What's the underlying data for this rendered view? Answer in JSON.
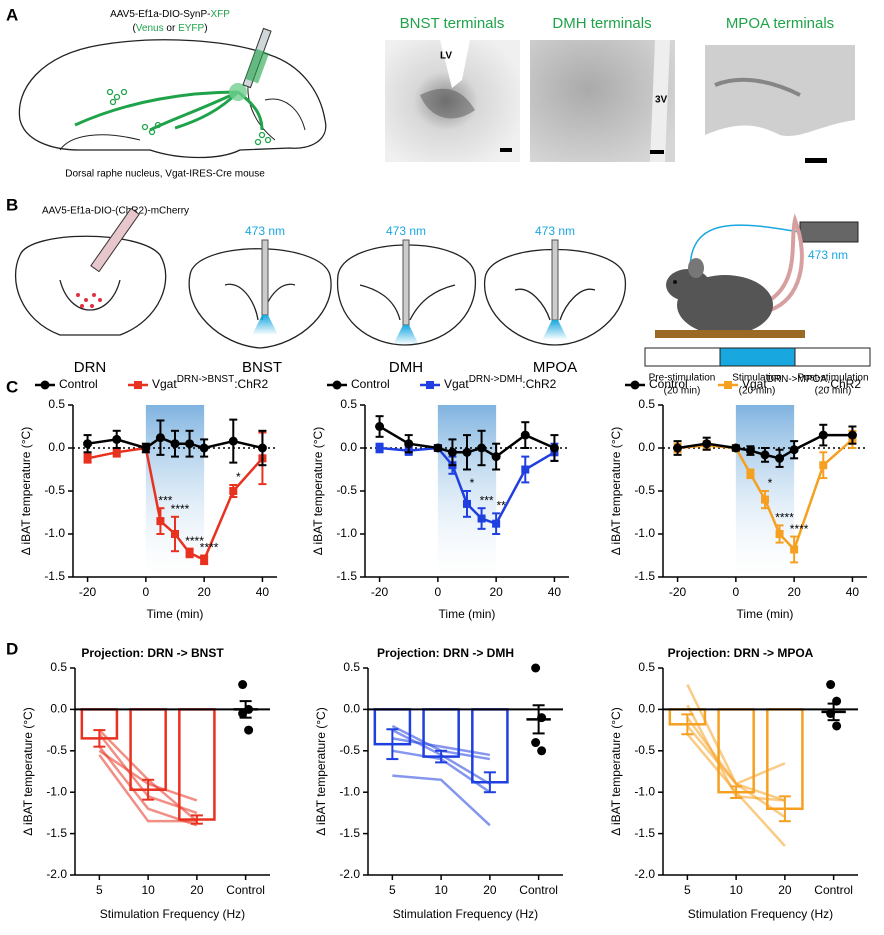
{
  "panel_a": {
    "label": "A",
    "vector": [
      "AAV5-Ef1a-DIO-SynP-",
      "XFP"
    ],
    "reporters": [
      "(",
      "Venus",
      " or ",
      "EYFP",
      ")"
    ],
    "caption": "Dorsal raphe nucleus, Vgat-IRES-Cre mouse",
    "images": [
      {
        "title": "BNST terminals",
        "mark": "LV"
      },
      {
        "title": "DMH terminals",
        "mark": "3V"
      },
      {
        "title": "MPOA terminals"
      }
    ]
  },
  "panel_b": {
    "label": "B",
    "vector": "AAV5-Ef1a-DIO-(ChR2)-mCherry",
    "sections": [
      {
        "label": "DRN"
      },
      {
        "label": "BNST",
        "laser": "473 nm"
      },
      {
        "label": "DMH",
        "laser": "473 nm"
      },
      {
        "label": "MPOA",
        "laser": "473 nm"
      }
    ],
    "setup_laser": "473 nm",
    "timeline": [
      {
        "phase": "Pre-stimulation",
        "duration": "(20 min)"
      },
      {
        "phase": "Stimulation",
        "duration": "(20 min)"
      },
      {
        "phase": "Post-stimulation",
        "duration": "(20 min)"
      }
    ]
  },
  "panel_c": {
    "label": "C"
  },
  "panel_d": {
    "label": "D"
  },
  "chart_data": [
    {
      "type": "line",
      "x": [
        -20,
        -10,
        0,
        5,
        10,
        15,
        20,
        30,
        40
      ],
      "xlim": [
        -25,
        45
      ],
      "xticks": [
        -20,
        0,
        20,
        40
      ],
      "ylim": [
        -1.5,
        0.5
      ],
      "yticks": [
        0.5,
        {
          "value": 0,
          "label": "0.0"
        },
        -0.5,
        {
          "value": -1,
          "label": "-1.0"
        },
        -1.5
      ],
      "xlabel": "Time (min)",
      "ylabel": "Δ iBAT temperature (°C)",
      "stimulation": [
        0,
        20
      ],
      "series": [
        {
          "name": "Control",
          "color": "#000000",
          "marker": "circle",
          "values": [
            0.05,
            0.1,
            0,
            0.12,
            0.05,
            0.05,
            0,
            0.08,
            0
          ],
          "errors": [
            0.1,
            0.1,
            0.05,
            0.2,
            0.15,
            0.15,
            0.1,
            0.25,
            0.2
          ]
        },
        {
          "name": "Vgat",
          "name_superscript": "DRN->BNST",
          "name_suffix": ":ChR2",
          "color": "#e8311f",
          "marker": "square",
          "values": [
            -0.12,
            -0.05,
            0,
            -0.85,
            -1.0,
            -1.22,
            -1.3,
            -0.5,
            -0.12
          ],
          "errors": [
            0.05,
            0.05,
            0.02,
            0.15,
            0.2,
            0.05,
            0.05,
            0.07,
            0.3
          ],
          "significance": [
            null,
            null,
            null,
            "***",
            "****",
            "****",
            "****",
            "*",
            null
          ]
        }
      ]
    },
    {
      "type": "line",
      "x": [
        -20,
        -10,
        0,
        5,
        10,
        15,
        20,
        30,
        40
      ],
      "xlim": [
        -25,
        45
      ],
      "xticks": [
        -20,
        0,
        20,
        40
      ],
      "ylim": [
        -1.5,
        0.5
      ],
      "yticks": [
        0.5,
        {
          "value": 0,
          "label": "0.0"
        },
        -0.5,
        {
          "value": -1,
          "label": "-1.0"
        },
        -1.5
      ],
      "xlabel": "Time (min)",
      "ylabel": "Δ iBAT temperature (°C)",
      "stimulation": [
        0,
        20
      ],
      "series": [
        {
          "name": "Control",
          "color": "#000000",
          "marker": "circle",
          "values": [
            0.25,
            0.05,
            0,
            -0.05,
            -0.05,
            0,
            -0.1,
            0.15,
            0
          ],
          "errors": [
            0.12,
            0.1,
            0.03,
            0.15,
            0.2,
            0.2,
            0.15,
            0.15,
            0.15
          ]
        },
        {
          "name": "Vgat",
          "name_superscript": "DRN->DMH",
          "name_suffix": ":ChR2",
          "color": "#1f3fe0",
          "marker": "square",
          "values": [
            0,
            -0.03,
            0,
            -0.2,
            -0.65,
            -0.82,
            -0.88,
            -0.25,
            -0.05
          ],
          "errors": [
            0.05,
            0.05,
            0.02,
            0.1,
            0.15,
            0.12,
            0.12,
            0.15,
            0.1
          ],
          "significance": [
            null,
            null,
            null,
            null,
            "*",
            "***",
            "**",
            null,
            null
          ]
        }
      ]
    },
    {
      "type": "line",
      "x": [
        -20,
        -10,
        0,
        5,
        10,
        15,
        20,
        30,
        40
      ],
      "xlim": [
        -25,
        45
      ],
      "xticks": [
        -20,
        0,
        20,
        40
      ],
      "ylim": [
        -1.5,
        0.5
      ],
      "yticks": [
        0.5,
        {
          "value": 0,
          "label": "0.0"
        },
        -0.5,
        {
          "value": -1,
          "label": "-1.0"
        },
        -1.5
      ],
      "xlabel": "Time (min)",
      "ylabel": "Δ iBAT temperature (°C)",
      "stimulation": [
        0,
        20
      ],
      "series": [
        {
          "name": "Control",
          "color": "#000000",
          "marker": "circle",
          "values": [
            0,
            0.05,
            0,
            -0.03,
            -0.08,
            -0.12,
            -0.02,
            0.15,
            0.15
          ],
          "errors": [
            0.08,
            0.07,
            0.03,
            0.05,
            0.08,
            0.1,
            0.1,
            0.12,
            0.1
          ]
        },
        {
          "name": "Vgat",
          "name_superscript": "DRN->MPOA",
          "name_suffix": ":ChR2",
          "color": "#f5a020",
          "marker": "square",
          "values": [
            0,
            0.03,
            0,
            -0.3,
            -0.6,
            -1.0,
            -1.18,
            -0.2,
            0.1
          ],
          "errors": [
            0.05,
            0.05,
            0.02,
            0.05,
            0.1,
            0.1,
            0.15,
            0.15,
            0.1
          ],
          "significance": [
            null,
            null,
            null,
            null,
            "*",
            "****",
            "****",
            null,
            null
          ]
        }
      ]
    },
    {
      "type": "bar",
      "title": "Projection: DRN -> BNST",
      "color": "#e8311f",
      "categories": [
        "5",
        "10",
        "20",
        "Control"
      ],
      "values": [
        -0.35,
        -0.97,
        -1.33,
        0
      ],
      "errors": [
        0.1,
        0.12,
        0.05,
        0.1
      ],
      "points": [
        null,
        null,
        null,
        [
          0.3,
          0,
          -0.05,
          -0.25
        ]
      ],
      "animals": [
        [
          -0.25,
          -0.85,
          -1.35
        ],
        [
          -0.45,
          -1.2,
          -1.4
        ],
        [
          -0.5,
          -0.9,
          -1.1
        ],
        [
          -0.3,
          -1.05,
          -1.25
        ],
        [
          -0.55,
          -1.35,
          -1.35
        ]
      ],
      "ylim": [
        -2,
        0.5
      ],
      "yticks": [
        0.5,
        {
          "value": 0,
          "label": "0.0"
        },
        -0.5,
        {
          "value": -1,
          "label": "-1.0"
        },
        -1.5,
        {
          "value": -2,
          "label": "-2.0"
        }
      ],
      "xlabel": "Stimulation Frequency (Hz)",
      "ylabel": "Δ iBAT temperature (°C)"
    },
    {
      "type": "bar",
      "title": "Projection: DRN -> DMH",
      "color": "#1f3fe0",
      "categories": [
        "5",
        "10",
        "20",
        "Control"
      ],
      "values": [
        -0.42,
        -0.57,
        -0.88,
        -0.12
      ],
      "errors": [
        0.18,
        0.07,
        0.12,
        0.17
      ],
      "points": [
        null,
        null,
        null,
        [
          0.5,
          -0.1,
          -0.4,
          -0.5
        ]
      ],
      "animals": [
        [
          -0.2,
          -0.5,
          -0.6
        ],
        [
          -0.35,
          -0.45,
          -0.55
        ],
        [
          -0.5,
          -0.6,
          -1.0
        ],
        [
          -0.8,
          -0.85,
          -1.4
        ],
        [
          -0.25,
          -0.55,
          -0.9
        ]
      ],
      "ylim": [
        -2,
        0.5
      ],
      "yticks": [
        0.5,
        {
          "value": 0,
          "label": "0.0"
        },
        -0.5,
        {
          "value": -1,
          "label": "-1.0"
        },
        -1.5,
        {
          "value": -2,
          "label": "-2.0"
        }
      ],
      "xlabel": "Stimulation Frequency (Hz)",
      "ylabel": "Δ iBAT temperature (°C)"
    },
    {
      "type": "bar",
      "title": "Projection: DRN -> MPOA",
      "color": "#f5a020",
      "categories": [
        "5",
        "10",
        "20",
        "Control"
      ],
      "values": [
        -0.18,
        -1.0,
        -1.2,
        -0.03
      ],
      "errors": [
        0.12,
        0.07,
        0.15,
        0.1
      ],
      "points": [
        null,
        null,
        null,
        [
          0.3,
          0.1,
          -0.05,
          -0.2
        ]
      ],
      "animals": [
        [
          0.3,
          -0.9,
          -1.3
        ],
        [
          -0.1,
          -0.9,
          -1.1
        ],
        [
          -0.3,
          -1.0,
          -1.65
        ],
        [
          0.05,
          -1.05,
          -1.1
        ],
        [
          -0.2,
          -0.9,
          -0.65
        ]
      ],
      "ylim": [
        -2,
        0.5
      ],
      "yticks": [
        0.5,
        {
          "value": 0,
          "label": "0.0"
        },
        -0.5,
        {
          "value": -1,
          "label": "-1.0"
        },
        -1.5,
        {
          "value": -2,
          "label": "-2.0"
        }
      ],
      "xlabel": "Stimulation Frequency (Hz)",
      "ylabel": "Δ iBAT temperature (°C)"
    }
  ]
}
